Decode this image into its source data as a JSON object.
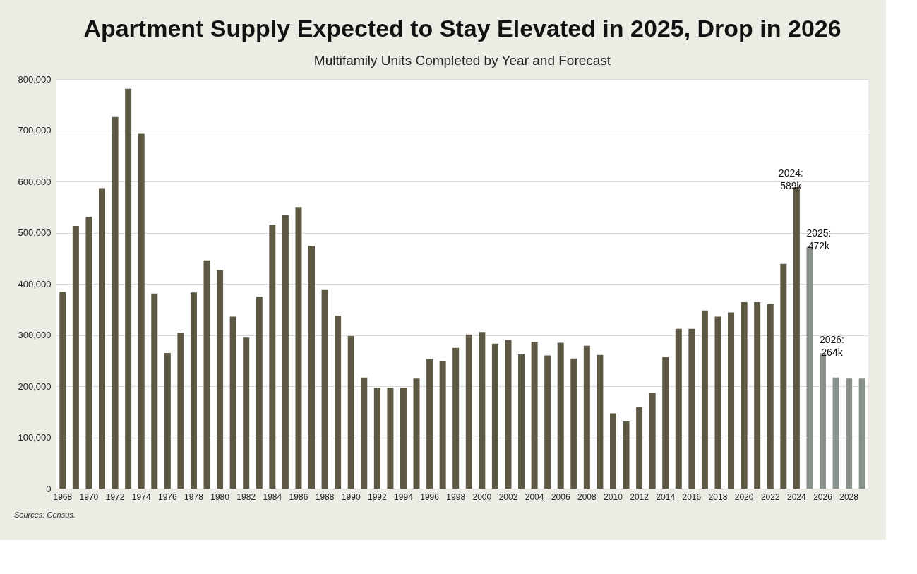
{
  "chart_data": {
    "type": "bar",
    "title": "Apartment Supply Expected to Stay Elevated in 2025, Drop in 2026",
    "subtitle": "Multifamily Units Completed by Year and Forecast",
    "categories": [
      "1968",
      null,
      "1970",
      null,
      "1972",
      null,
      "1974",
      null,
      "1976",
      null,
      "1978",
      null,
      "1980",
      null,
      "1982",
      null,
      "1984",
      null,
      "1986",
      null,
      "1988",
      null,
      "1990",
      null,
      "1992",
      null,
      "1994",
      null,
      "1996",
      null,
      "1998",
      null,
      "2000",
      null,
      "2002",
      null,
      "2004",
      null,
      "2006",
      null,
      "2008",
      null,
      "2010",
      null,
      "2012",
      null,
      "2014",
      null,
      "2016",
      null,
      "2018",
      null,
      "2020",
      null,
      "2022",
      null,
      "2024",
      null,
      "2026",
      null,
      "2028",
      null
    ],
    "values": [
      384000,
      513000,
      531000,
      587000,
      726000,
      781000,
      693000,
      381000,
      265000,
      305000,
      383000,
      446000,
      427000,
      336000,
      295000,
      375000,
      516000,
      534000,
      550000,
      474000,
      388000,
      338000,
      298000,
      217000,
      197000,
      197000,
      197000,
      215000,
      253000,
      249000,
      275000,
      301000,
      306000,
      283000,
      290000,
      262000,
      287000,
      260000,
      285000,
      254000,
      279000,
      261000,
      147000,
      131000,
      159000,
      187000,
      257000,
      312000,
      312000,
      348000,
      336000,
      344000,
      364000,
      364000,
      360000,
      439000,
      589000,
      472000,
      264000,
      217000,
      215000,
      215000
    ],
    "colors": [
      "#5c5843",
      "#5c5843",
      "#5c5843",
      "#5c5843",
      "#5c5843",
      "#5c5843",
      "#5c5843",
      "#5c5843",
      "#5c5843",
      "#5c5843",
      "#5c5843",
      "#5c5843",
      "#5c5843",
      "#5c5843",
      "#5c5843",
      "#5c5843",
      "#5c5843",
      "#5c5843",
      "#5c5843",
      "#5c5843",
      "#5c5843",
      "#5c5843",
      "#5c5843",
      "#5c5843",
      "#5c5843",
      "#5c5843",
      "#5c5843",
      "#5c5843",
      "#5c5843",
      "#5c5843",
      "#5c5843",
      "#5c5843",
      "#5c5843",
      "#5c5843",
      "#5c5843",
      "#5c5843",
      "#5c5843",
      "#5c5843",
      "#5c5843",
      "#5c5843",
      "#5c5843",
      "#5c5843",
      "#5c5843",
      "#5c5843",
      "#5c5843",
      "#5c5843",
      "#5c5843",
      "#5c5843",
      "#5c5843",
      "#5c5843",
      "#5c5843",
      "#5c5843",
      "#5c5843",
      "#5c5843",
      "#5c5843",
      "#5c5843",
      "#5c5843",
      "#87918a",
      "#87918a",
      "#87918a",
      "#87918a",
      "#87918a"
    ],
    "ylim": [
      0,
      800000
    ],
    "yticks": [
      0,
      {
        "value": 100000,
        "label": "100,000"
      },
      {
        "value": 200000,
        "label": "200,000"
      },
      {
        "value": 300000,
        "label": "300,000"
      },
      {
        "value": 400000,
        "label": "400,000"
      },
      {
        "value": 500000,
        "label": "500,000"
      },
      {
        "value": 600000,
        "label": "600,000"
      },
      {
        "value": 700000,
        "label": "700,000"
      },
      {
        "value": 800000,
        "label": "800,000"
      }
    ],
    "grid": "y",
    "value_labels": [
      null,
      null,
      null,
      null,
      null,
      null,
      null,
      null,
      null,
      null,
      null,
      null,
      null,
      null,
      null,
      null,
      null,
      null,
      null,
      null,
      null,
      null,
      null,
      null,
      null,
      null,
      null,
      null,
      null,
      null,
      null,
      null,
      null,
      null,
      null,
      null,
      null,
      null,
      null,
      null,
      null,
      null,
      null,
      null,
      null,
      null,
      null,
      null,
      null,
      null,
      null,
      null,
      null,
      null,
      null,
      null,
      "2024: 589k",
      "2025: 472k",
      "2026: 264k",
      null,
      null,
      null
    ],
    "annotations": [
      "Sources: Census."
    ]
  }
}
